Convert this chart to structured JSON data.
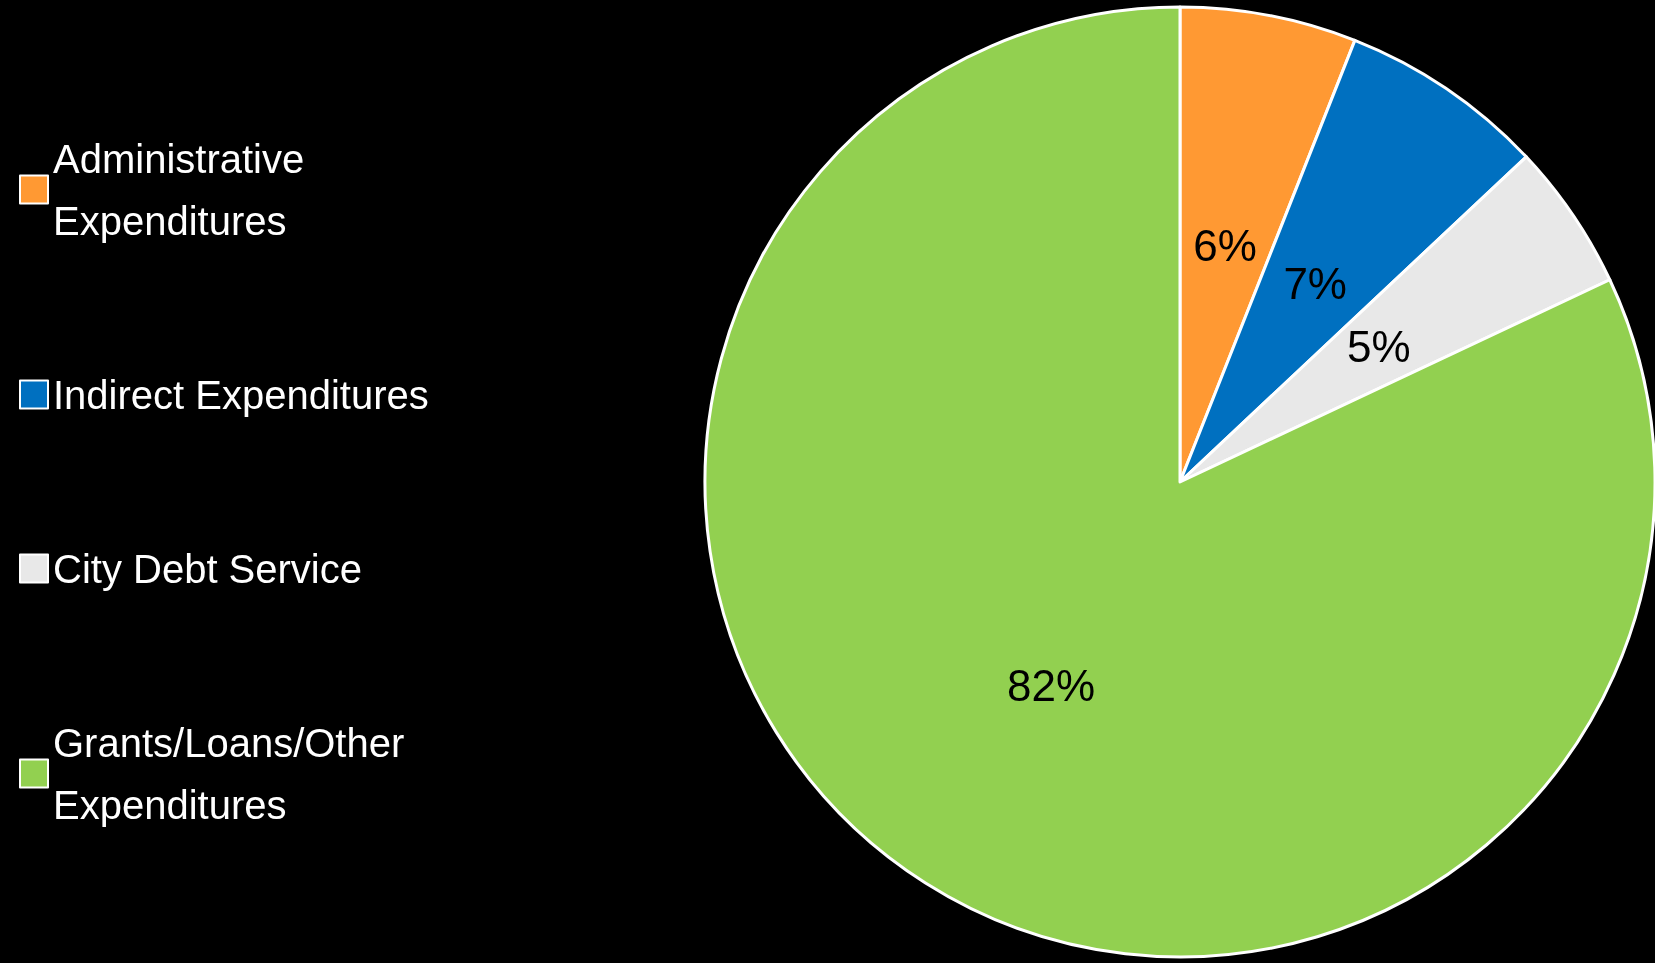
{
  "chart_data": {
    "type": "pie",
    "categories": [
      "Administrative Expenditures",
      "Indirect Expenditures",
      "City Debt Service",
      "Grants/Loans/Other Expenditures"
    ],
    "values": [
      6,
      7,
      5,
      82
    ],
    "colors": [
      "#ff9933",
      "#0070c0",
      "#e8e8e8",
      "#92d050"
    ],
    "value_labels": [
      "6%",
      "7%",
      "5%",
      "82%"
    ],
    "legend": "left"
  }
}
